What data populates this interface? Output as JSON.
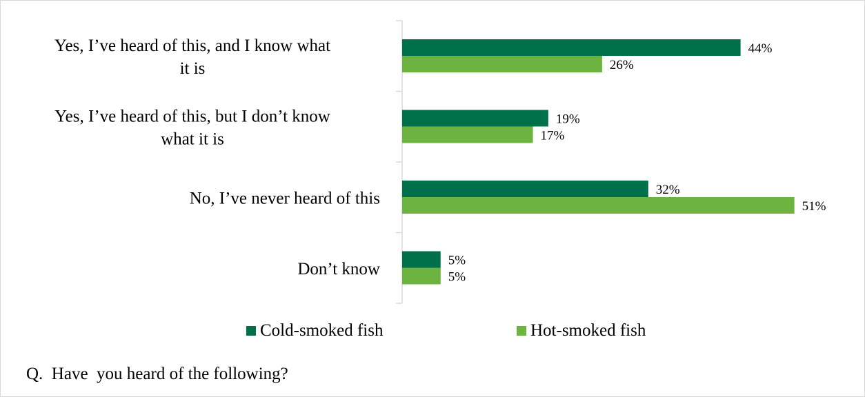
{
  "chart_data": {
    "type": "bar",
    "orientation": "horizontal",
    "categories": [
      "Yes, I’ve heard of this, and I know what it is",
      "Yes, I’ve heard of this, but I don’t know what it is",
      "No, I’ve never heard of this",
      "Don’t know"
    ],
    "category_label_lines": [
      [
        "Yes, I’ve heard of this, and I know what",
        "it is"
      ],
      [
        "Yes, I’ve heard of this, but I don’t know",
        "what it is"
      ],
      [
        "No, I’ve never heard of this"
      ],
      [
        "Don’t know"
      ]
    ],
    "series": [
      {
        "name": "Cold-smoked fish",
        "color": "#00704a",
        "values": [
          44,
          19,
          32,
          5
        ],
        "value_labels": [
          "44%",
          "19%",
          "32%",
          "5%"
        ]
      },
      {
        "name": "Hot-smoked fish",
        "color": "#6db33f",
        "values": [
          26,
          17,
          51,
          5
        ],
        "value_labels": [
          "26%",
          "17%",
          "51%",
          "5%"
        ]
      }
    ],
    "value_unit": "%",
    "xlim": [
      0,
      55
    ],
    "grid": false,
    "legend_position": "bottom"
  },
  "footer": {
    "question": "Q.  Have  you heard of the following?"
  }
}
